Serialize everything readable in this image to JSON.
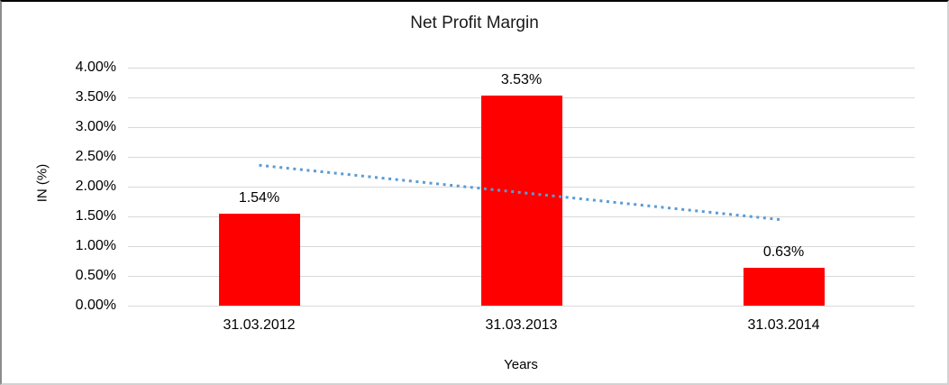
{
  "chart_data": {
    "type": "bar",
    "title": "Net Profit Margin",
    "xlabel": "Years",
    "ylabel": "IN (%)",
    "categories": [
      "31.03.2012",
      "31.03.2013",
      "31.03.2014"
    ],
    "values": [
      1.54,
      3.53,
      0.63
    ],
    "data_labels": [
      "1.54%",
      "3.53%",
      "0.63%"
    ],
    "ylim": [
      0,
      4
    ],
    "ytick_values": [
      0,
      0.5,
      1,
      1.5,
      2,
      2.5,
      3,
      3.5,
      4
    ],
    "ytick_labels": [
      "0.00%",
      "0.50%",
      "1.00%",
      "1.50%",
      "2.00%",
      "2.50%",
      "3.00%",
      "3.50%",
      "4.00%"
    ],
    "grid": true,
    "legend": "none",
    "bar_color": "#FF0000",
    "gridline_color": "#d9d9d9",
    "trendline": {
      "style": "dotted",
      "color": "#5B9BD5",
      "start_value": 2.36,
      "end_value": 1.44
    }
  }
}
